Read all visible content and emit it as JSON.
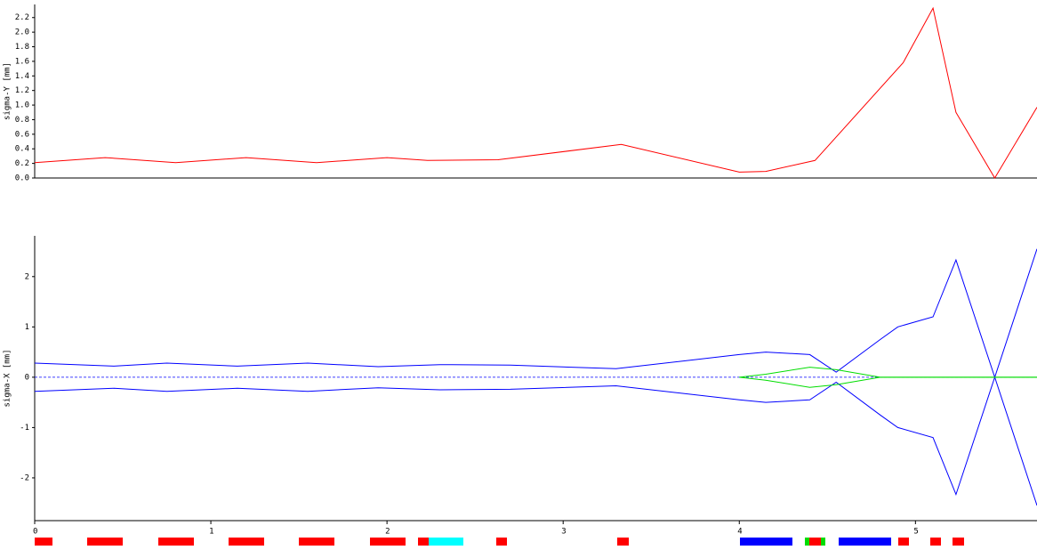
{
  "chart_data": [
    {
      "type": "line",
      "ylabel": "sigma-Y [mm]",
      "x": [
        0,
        0.4,
        0.8,
        1.2,
        1.6,
        2.0,
        2.23,
        2.63,
        3.33,
        4.0,
        4.15,
        4.43,
        4.93,
        5.1,
        5.23,
        5.45,
        5.69
      ],
      "series": [
        {
          "color": "#ff0000",
          "values": [
            0.21,
            0.28,
            0.21,
            0.28,
            0.21,
            0.28,
            0.24,
            0.25,
            0.46,
            0.08,
            0.09,
            0.24,
            1.58,
            2.33,
            0.9,
            0,
            0.97
          ]
        }
      ],
      "xlim": [
        0,
        5.69
      ],
      "ylim": [
        0,
        2.38
      ],
      "yticks": [
        {
          "value": 0,
          "label": "0.0"
        },
        0.2,
        0.4,
        0.6,
        0.8,
        {
          "value": 1,
          "label": "1.0"
        },
        1.2,
        1.4,
        1.6,
        1.8,
        {
          "value": 2,
          "label": "2.0"
        },
        2.2
      ]
    },
    {
      "type": "line",
      "ylabel": "sigma-X [mm]",
      "x": [
        0,
        0.45,
        0.75,
        1.15,
        1.55,
        1.95,
        2.3,
        2.7,
        3.3,
        4.0,
        4.15,
        4.4,
        4.55,
        4.8,
        4.9,
        5.1,
        5.23,
        5.45,
        5.69
      ],
      "series": [
        {
          "color": "#0000ff",
          "values": [
            0.28,
            0.22,
            0.28,
            0.22,
            0.28,
            0.21,
            0.25,
            0.24,
            0.17,
            0.45,
            0.5,
            0.45,
            0.1,
            0.75,
            1.0,
            1.2,
            2.33,
            0,
            2.55
          ]
        },
        {
          "color": "#0000ff",
          "values": [
            -0.28,
            -0.22,
            -0.28,
            -0.22,
            -0.28,
            -0.21,
            -0.25,
            -0.24,
            -0.17,
            -0.45,
            -0.5,
            -0.45,
            -0.1,
            -0.75,
            -1.0,
            -1.2,
            -2.33,
            0,
            -2.55
          ]
        },
        {
          "color": "#00dd00",
          "values": [
            null,
            null,
            null,
            null,
            null,
            null,
            null,
            null,
            null,
            0,
            0.06,
            0.2,
            0.15,
            0,
            0,
            0,
            0,
            0,
            0
          ]
        },
        {
          "color": "#00dd00",
          "values": [
            null,
            null,
            null,
            null,
            null,
            null,
            null,
            null,
            null,
            0,
            -0.06,
            -0.2,
            -0.15,
            0,
            0,
            0,
            0,
            0,
            0
          ]
        }
      ],
      "xlim": [
        0,
        5.69
      ],
      "ylim": [
        -2.85,
        2.81
      ],
      "xticks": [
        0,
        1,
        2,
        3,
        4,
        5
      ],
      "yticks": [
        -2,
        -1,
        0,
        1,
        2
      ]
    }
  ]
}
